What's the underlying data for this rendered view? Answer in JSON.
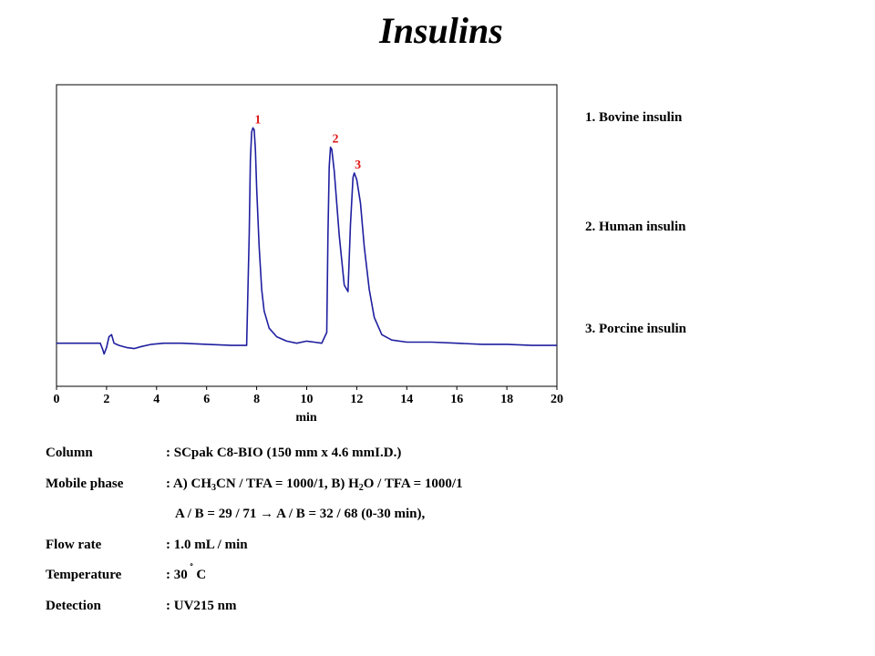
{
  "title": "Insulins",
  "chart_data": {
    "type": "line",
    "xlabel": "min",
    "ylabel": "",
    "xlim": [
      0,
      20
    ],
    "ylim": [
      -0.2,
      1.2
    ],
    "xticks": [
      0,
      2,
      4,
      6,
      8,
      10,
      12,
      14,
      16,
      18,
      20
    ],
    "xtick_labels": [
      "0",
      "2",
      "4",
      "6",
      "8",
      "10",
      "12",
      "14",
      "16",
      "18",
      "20"
    ],
    "grid": false,
    "line_color": "#1f1fa0",
    "peak_label_color": "#e01818",
    "peaks": [
      {
        "label": "1",
        "x": 7.9,
        "y": 1.0
      },
      {
        "label": "2",
        "x": 11.0,
        "y": 0.91
      },
      {
        "label": "3",
        "x": 11.9,
        "y": 0.79
      }
    ],
    "series": [
      {
        "x": [
          0,
          1.5,
          1.75,
          1.85,
          1.9,
          2.0,
          2.1,
          2.2,
          2.3,
          2.5,
          2.8,
          3.1,
          3.4,
          3.8,
          4.3,
          5.0,
          6.0,
          7.0,
          7.6,
          7.7,
          7.75,
          7.8,
          7.85,
          7.9,
          7.95,
          8.0,
          8.1,
          8.2,
          8.3,
          8.5,
          8.8,
          9.2,
          9.6,
          10.0,
          10.3,
          10.6,
          10.8,
          10.85,
          10.9,
          10.95,
          11.0,
          11.1,
          11.3,
          11.5,
          11.65,
          11.75,
          11.85,
          11.9,
          12.0,
          12.15,
          12.3,
          12.5,
          12.7,
          13.0,
          13.4,
          14.0,
          15.0,
          16.0,
          17.0,
          18.0,
          19.0,
          20.0
        ],
        "y": [
          0.0,
          0.0,
          0.0,
          -0.03,
          -0.05,
          -0.02,
          0.03,
          0.04,
          0.0,
          -0.01,
          -0.02,
          -0.025,
          -0.015,
          -0.005,
          0.0,
          0.0,
          -0.005,
          -0.01,
          -0.01,
          0.5,
          0.85,
          0.98,
          1.0,
          0.99,
          0.9,
          0.72,
          0.45,
          0.25,
          0.15,
          0.07,
          0.03,
          0.01,
          0.0,
          0.01,
          0.005,
          0.0,
          0.05,
          0.5,
          0.82,
          0.91,
          0.9,
          0.8,
          0.5,
          0.27,
          0.24,
          0.55,
          0.77,
          0.79,
          0.76,
          0.65,
          0.45,
          0.25,
          0.12,
          0.04,
          0.015,
          0.005,
          0.005,
          0.0,
          -0.005,
          -0.005,
          -0.01,
          -0.01
        ]
      }
    ]
  },
  "legend": [
    "1. Bovine insulin",
    "2. Human insulin",
    "3. Porcine insulin"
  ],
  "conditions": {
    "column": {
      "label": "Column",
      "value": ": SCpak C8-BIO  (150 mm  x 4.6 mmI.D.)"
    },
    "mobile_phase": {
      "label": "Mobile phase",
      "p1": ": A) CH",
      "sub1": "3",
      "p2": "CN / TFA = 1000/1, B) H",
      "sub2": "2",
      "p3": "O  / TFA = 1000/1",
      "line2": "A / B = 29 / 71 → A / B = 32 / 68 (0-30 min),"
    },
    "flow_rate": {
      "label": "Flow rate",
      "value": ": 1.0 mL / min"
    },
    "temperature": {
      "label": "Temperature",
      "prefix": ": 30",
      "deg": "˚",
      "unit": "C"
    },
    "detection": {
      "label": "Detection",
      "value": ": UV215 nm"
    }
  }
}
